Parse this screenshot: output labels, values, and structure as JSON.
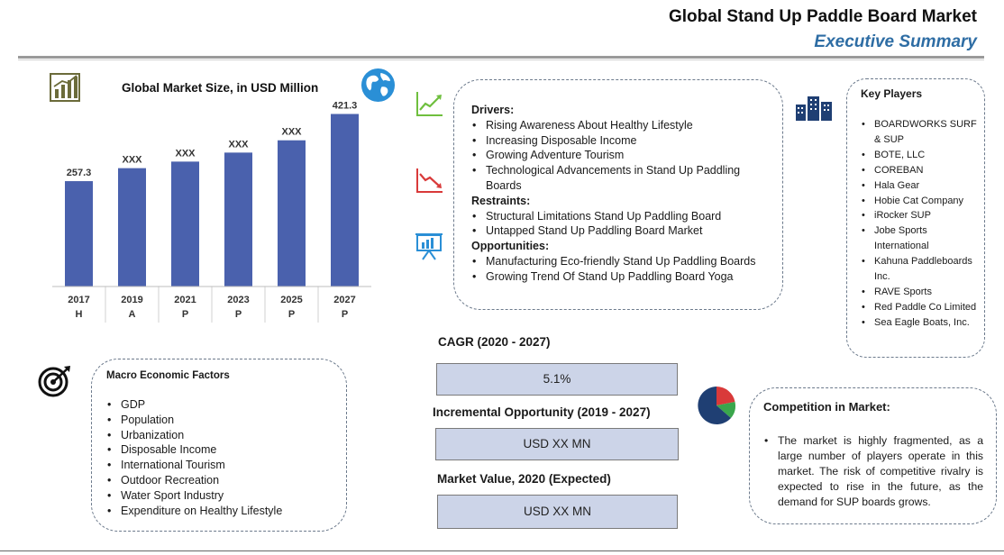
{
  "header": {
    "title": "Global Stand Up Paddle Board Market",
    "subtitle": "Executive Summary"
  },
  "chart_data": {
    "type": "bar",
    "title": "Global Market Size, in USD Million",
    "categories": [
      "2017",
      "2019",
      "2021",
      "2023",
      "2025",
      "2027"
    ],
    "sublabels": [
      "H",
      "A",
      "P",
      "P",
      "P",
      "P"
    ],
    "values": [
      257.3,
      289,
      305,
      327,
      357,
      421.3
    ],
    "data_labels": [
      "257.3",
      "XXX",
      "XXX",
      "XXX",
      "XXX",
      "421.3"
    ],
    "ylim": [
      0,
      440
    ],
    "grid": false,
    "legend": "none",
    "bar_color": "#4a61ad"
  },
  "drivers_section": {
    "drivers_heading": "Drivers:",
    "drivers": [
      "Rising Awareness About Healthy Lifestyle",
      "Increasing Disposable Income",
      "Growing Adventure Tourism",
      "Technological Advancements in Stand Up Paddling Boards"
    ],
    "restraints_heading": "Restraints:",
    "restraints": [
      "Structural Limitations Stand Up Paddling Board",
      "Untapped Stand Up Paddling Board Market"
    ],
    "opportunities_heading": "Opportunities:",
    "opportunities": [
      "Manufacturing Eco-friendly Stand Up Paddling Boards",
      "Growing Trend Of Stand Up Paddling Board Yoga"
    ]
  },
  "key_players": {
    "title": "Key Players",
    "items": [
      "BOARDWORKS SURF & SUP",
      "BOTE, LLC",
      "COREBAN",
      "Hala Gear",
      "Hobie Cat Company",
      "iRocker SUP",
      "Jobe Sports International",
      "Kahuna Paddleboards Inc.",
      "RAVE Sports",
      "Red Paddle Co Limited",
      "Sea Eagle Boats, Inc."
    ]
  },
  "macro": {
    "title": "Macro Economic Factors",
    "items": [
      "GDP",
      "Population",
      "Urbanization",
      "Disposable Income",
      "International Tourism",
      "Outdoor Recreation",
      "Water Sport Industry",
      "Expenditure on Healthy Lifestyle"
    ]
  },
  "kpis": {
    "cagr_label": "CAGR (2020 - 2027)",
    "cagr_value": "5.1%",
    "incremental_label": "Incremental Opportunity (2019 - 2027)",
    "incremental_value": "USD XX MN",
    "market_value_label": "Market Value, 2020 (Expected)",
    "market_value_value": "USD XX MN"
  },
  "competition": {
    "title": "Competition in Market:",
    "text": "The market is highly fragmented, as a large number of players operate in this market. The risk of competitive rivalry is expected to rise in the future, as the demand for SUP boards grows."
  },
  "colors": {
    "accent_blue": "#2e6da4",
    "bar": "#4a61ad",
    "kpi_fill": "#ccd4e8",
    "growth_green": "#6fbf3e",
    "decline_red": "#d93a3a",
    "icon_olive": "#6b6b3a",
    "icon_navy": "#1f3f73"
  },
  "icons": [
    "bar-chart-icon",
    "globe-icon",
    "growth-chart-icon",
    "decline-chart-icon",
    "presentation-icon",
    "buildings-icon",
    "target-icon",
    "pie-chart-icon"
  ]
}
